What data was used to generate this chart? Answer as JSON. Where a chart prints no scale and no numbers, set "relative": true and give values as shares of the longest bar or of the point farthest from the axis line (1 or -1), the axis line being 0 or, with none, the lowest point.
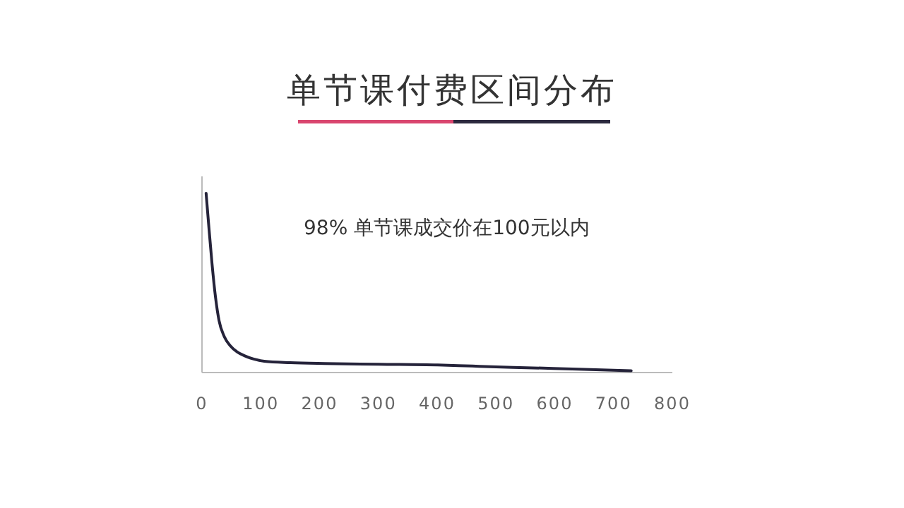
{
  "chart_data": {
    "type": "line",
    "title": "单节课付费区间分布",
    "annotations": [
      "98% 单节课成交价在100元以内"
    ],
    "relative": true,
    "xlim": [
      0,
      800
    ],
    "xticks": [
      0,
      100,
      200,
      300,
      400,
      500,
      600,
      700,
      800
    ],
    "series": [
      {
        "color": "#25233a",
        "x": [
          7,
          12,
          17,
          23,
          29,
          38,
          48,
          60,
          72,
          88,
          106,
          150,
          209,
          300,
          401,
          460,
          529,
          630,
          730
        ],
        "values": [
          1,
          0.8,
          0.61,
          0.42,
          0.29,
          0.2,
          0.15,
          0.115,
          0.094,
          0.075,
          0.063,
          0.055,
          0.05,
          0.046,
          0.042,
          0.036,
          0.029,
          0.02,
          0.01
        ]
      }
    ],
    "grid": false,
    "marker": "none",
    "line_style": "solid"
  }
}
